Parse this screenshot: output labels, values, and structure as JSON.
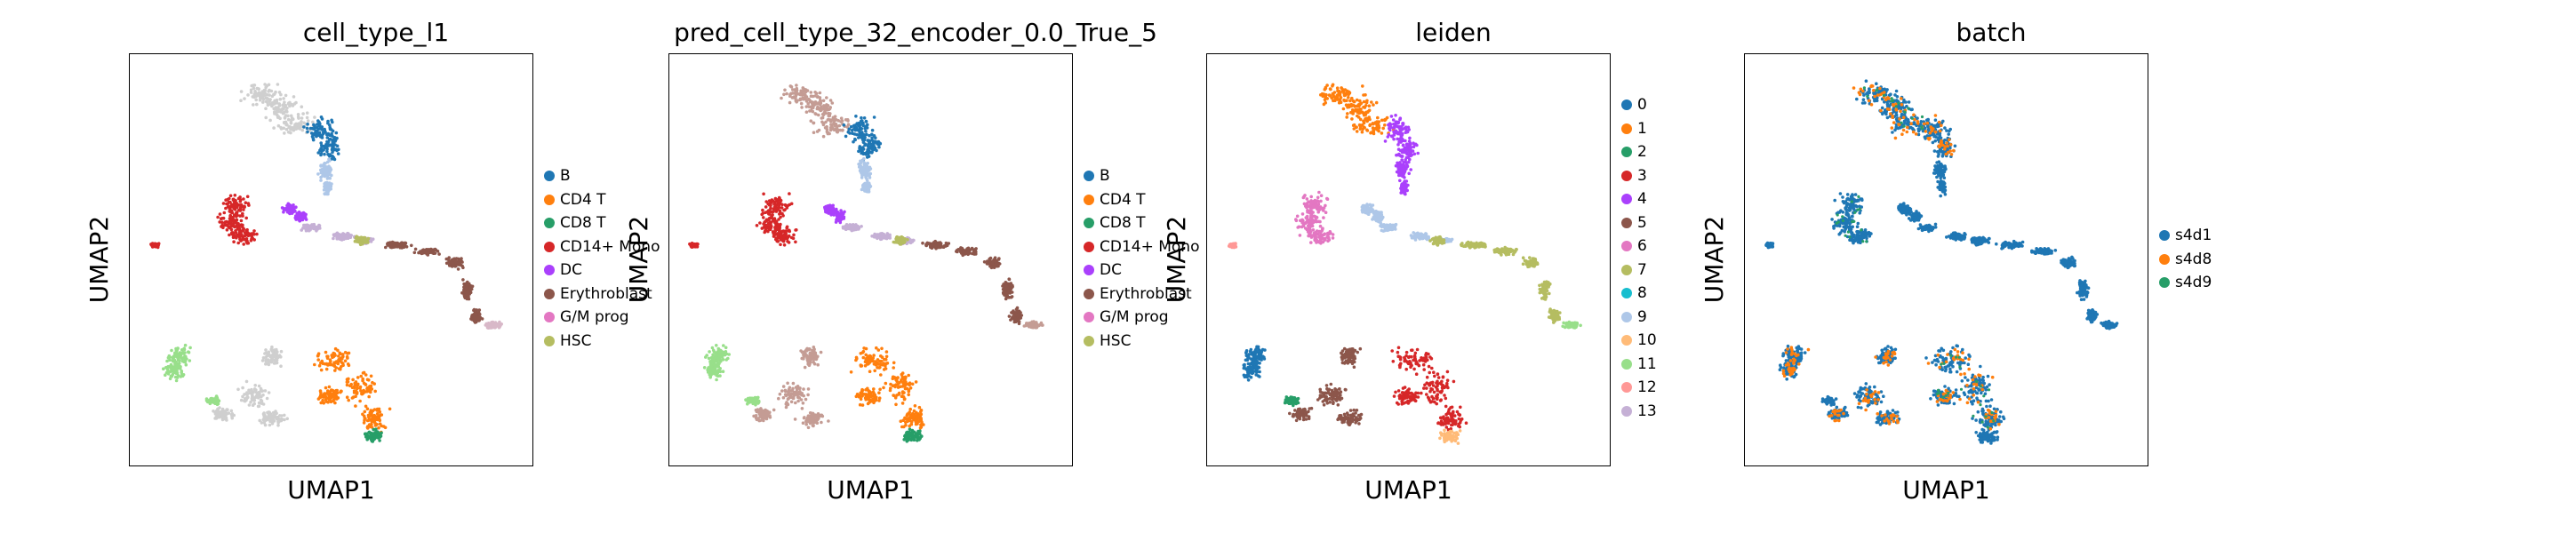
{
  "panels": [
    {
      "title": "cell_type_l1",
      "xlabel": "UMAP1",
      "ylabel": "UMAP2",
      "legend": [
        {
          "label": "B",
          "color": "#1f77b4"
        },
        {
          "label": "CD4 T",
          "color": "#ff7f0e"
        },
        {
          "label": "CD8 T",
          "color": "#279e68"
        },
        {
          "label": "CD14+ Mono",
          "color": "#d62728"
        },
        {
          "label": "DC",
          "color": "#aa40fc"
        },
        {
          "label": "Erythroblast",
          "color": "#8c564b"
        },
        {
          "label": "G/M prog",
          "color": "#e377c2"
        },
        {
          "label": "HSC",
          "color": "#b5bd61"
        }
      ]
    },
    {
      "title": "pred_cell_type_32_encoder_0.0_True_5",
      "xlabel": "UMAP1",
      "ylabel": "UMAP2",
      "legend": [
        {
          "label": "B",
          "color": "#1f77b4"
        },
        {
          "label": "CD4 T",
          "color": "#ff7f0e"
        },
        {
          "label": "CD8 T",
          "color": "#279e68"
        },
        {
          "label": "CD14+ Mono",
          "color": "#d62728"
        },
        {
          "label": "DC",
          "color": "#aa40fc"
        },
        {
          "label": "Erythroblast",
          "color": "#8c564b"
        },
        {
          "label": "G/M prog",
          "color": "#e377c2"
        },
        {
          "label": "HSC",
          "color": "#b5bd61"
        }
      ]
    },
    {
      "title": "leiden",
      "xlabel": "UMAP1",
      "ylabel": "UMAP2",
      "legend": [
        {
          "label": "0",
          "color": "#1f77b4"
        },
        {
          "label": "1",
          "color": "#ff7f0e"
        },
        {
          "label": "2",
          "color": "#279e68"
        },
        {
          "label": "3",
          "color": "#d62728"
        },
        {
          "label": "4",
          "color": "#aa40fc"
        },
        {
          "label": "5",
          "color": "#8c564b"
        },
        {
          "label": "6",
          "color": "#e377c2"
        },
        {
          "label": "7",
          "color": "#b5bd61"
        },
        {
          "label": "8",
          "color": "#17becf"
        },
        {
          "label": "9",
          "color": "#aec7e8"
        },
        {
          "label": "10",
          "color": "#ffbb78"
        },
        {
          "label": "11",
          "color": "#98df8a"
        },
        {
          "label": "12",
          "color": "#ff9896"
        },
        {
          "label": "13",
          "color": "#c5b0d5"
        }
      ]
    },
    {
      "title": "batch",
      "xlabel": "UMAP1",
      "ylabel": "UMAP2",
      "legend": [
        {
          "label": "s4d1",
          "color": "#1f77b4"
        },
        {
          "label": "s4d8",
          "color": "#ff7f0e"
        },
        {
          "label": "s4d9",
          "color": "#279e68"
        }
      ]
    }
  ],
  "chart_data": [
    {
      "type": "scatter",
      "title": "cell_type_l1",
      "xlabel": "UMAP1",
      "ylabel": "UMAP2",
      "grid": false,
      "legend_position": "right",
      "series": [
        {
          "name": "B"
        },
        {
          "name": "CD4 T"
        },
        {
          "name": "CD8 T"
        },
        {
          "name": "CD14+ Mono"
        },
        {
          "name": "DC"
        },
        {
          "name": "Erythroblast"
        },
        {
          "name": "G/M prog"
        },
        {
          "name": "HSC"
        }
      ]
    },
    {
      "type": "scatter",
      "title": "pred_cell_type_32_encoder_0.0_True_5",
      "xlabel": "UMAP1",
      "ylabel": "UMAP2",
      "grid": false,
      "legend_position": "right",
      "series": [
        {
          "name": "B"
        },
        {
          "name": "CD4 T"
        },
        {
          "name": "CD8 T"
        },
        {
          "name": "CD14+ Mono"
        },
        {
          "name": "DC"
        },
        {
          "name": "Erythroblast"
        },
        {
          "name": "G/M prog"
        },
        {
          "name": "HSC"
        }
      ]
    },
    {
      "type": "scatter",
      "title": "leiden",
      "xlabel": "UMAP1",
      "ylabel": "UMAP2",
      "grid": false,
      "legend_position": "right",
      "series": [
        {
          "name": "0"
        },
        {
          "name": "1"
        },
        {
          "name": "2"
        },
        {
          "name": "3"
        },
        {
          "name": "4"
        },
        {
          "name": "5"
        },
        {
          "name": "6"
        },
        {
          "name": "7"
        },
        {
          "name": "8"
        },
        {
          "name": "9"
        },
        {
          "name": "10"
        },
        {
          "name": "11"
        },
        {
          "name": "12"
        },
        {
          "name": "13"
        }
      ]
    },
    {
      "type": "scatter",
      "title": "batch",
      "xlabel": "UMAP1",
      "ylabel": "UMAP2",
      "grid": false,
      "legend_position": "right",
      "series": [
        {
          "name": "s4d1"
        },
        {
          "name": "s4d8"
        },
        {
          "name": "s4d9"
        }
      ]
    }
  ]
}
